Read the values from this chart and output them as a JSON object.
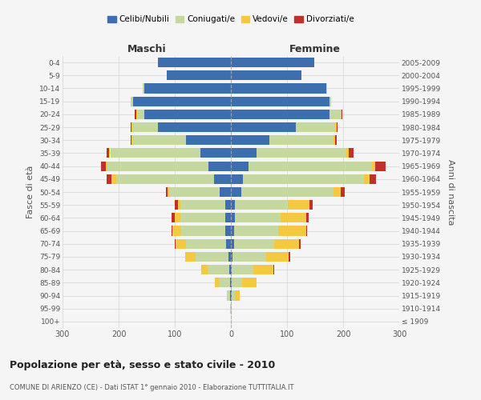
{
  "age_groups": [
    "100+",
    "95-99",
    "90-94",
    "85-89",
    "80-84",
    "75-79",
    "70-74",
    "65-69",
    "60-64",
    "55-59",
    "50-54",
    "45-49",
    "40-44",
    "35-39",
    "30-34",
    "25-29",
    "20-24",
    "15-19",
    "10-14",
    "5-9",
    "0-4"
  ],
  "birth_years": [
    "≤ 1909",
    "1910-1914",
    "1915-1919",
    "1920-1924",
    "1925-1929",
    "1930-1934",
    "1935-1939",
    "1940-1944",
    "1945-1949",
    "1950-1954",
    "1955-1959",
    "1960-1964",
    "1965-1969",
    "1970-1974",
    "1975-1979",
    "1980-1984",
    "1985-1989",
    "1990-1994",
    "1995-1999",
    "2000-2004",
    "2005-2009"
  ],
  "males": {
    "celibi": [
      0,
      0,
      2,
      2,
      3,
      5,
      8,
      10,
      10,
      10,
      20,
      30,
      40,
      55,
      80,
      130,
      155,
      175,
      155,
      115,
      130
    ],
    "coniugati": [
      0,
      1,
      5,
      18,
      38,
      58,
      72,
      78,
      80,
      80,
      90,
      175,
      180,
      160,
      95,
      45,
      12,
      3,
      2,
      0,
      0
    ],
    "vedovi": [
      0,
      0,
      0,
      8,
      12,
      18,
      18,
      16,
      10,
      5,
      3,
      8,
      3,
      2,
      2,
      2,
      2,
      0,
      0,
      0,
      0
    ],
    "divorziati": [
      0,
      0,
      0,
      0,
      0,
      0,
      2,
      2,
      6,
      5,
      3,
      8,
      8,
      4,
      2,
      2,
      2,
      0,
      0,
      0,
      0
    ]
  },
  "females": {
    "nubili": [
      0,
      0,
      2,
      2,
      2,
      3,
      5,
      6,
      7,
      7,
      18,
      22,
      32,
      45,
      68,
      115,
      175,
      175,
      170,
      125,
      148
    ],
    "coniugate": [
      0,
      1,
      5,
      18,
      38,
      60,
      72,
      78,
      82,
      95,
      165,
      215,
      220,
      160,
      115,
      70,
      20,
      3,
      2,
      0,
      0
    ],
    "vedove": [
      0,
      1,
      8,
      25,
      35,
      40,
      45,
      50,
      45,
      38,
      12,
      10,
      5,
      5,
      3,
      3,
      2,
      0,
      0,
      0,
      0
    ],
    "divorziate": [
      0,
      0,
      0,
      0,
      2,
      2,
      2,
      2,
      5,
      5,
      8,
      12,
      18,
      8,
      3,
      2,
      2,
      0,
      0,
      0,
      0
    ]
  },
  "colors": {
    "celibi": "#3d6faf",
    "coniugati": "#c5d8a0",
    "vedovi": "#f5c842",
    "divorziati": "#c0312b"
  },
  "xlim": 300,
  "title": "Popolazione per età, sesso e stato civile - 2010",
  "subtitle": "COMUNE DI ARIENZO (CE) - Dati ISTAT 1° gennaio 2010 - Elaborazione TUTTITALIA.IT",
  "xlabel_left": "Maschi",
  "xlabel_right": "Femmine",
  "ylabel_left": "Fasce di età",
  "ylabel_right": "Anni di nascita",
  "legend_labels": [
    "Celibi/Nubili",
    "Coniugati/e",
    "Vedovi/e",
    "Divorziati/e"
  ],
  "bg_color": "#f5f5f5",
  "grid_color": "#cccccc"
}
